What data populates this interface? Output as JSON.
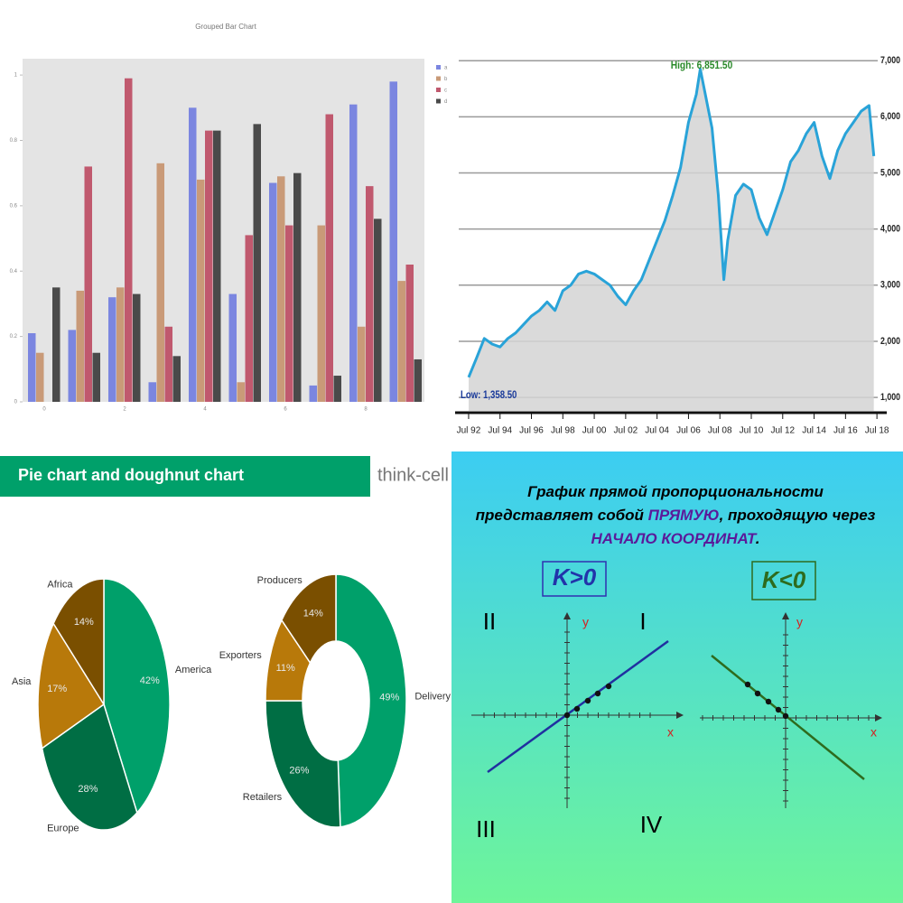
{
  "chart_data": [
    {
      "type": "bar",
      "title": "Grouped Bar Chart",
      "categories": [
        "0",
        null,
        "2",
        null,
        "4",
        null,
        "6",
        null,
        "8",
        null
      ],
      "series": [
        {
          "name": "a",
          "color": "#7b86e0",
          "values": [
            0.21,
            0.22,
            0.32,
            0.06,
            0.9,
            0.33,
            0.67,
            0.05,
            0.91,
            0.98
          ]
        },
        {
          "name": "b",
          "color": "#c99a78",
          "values": [
            0.15,
            0.34,
            0.35,
            0.73,
            0.68,
            0.06,
            0.69,
            0.54,
            0.23,
            0.37
          ]
        },
        {
          "name": "c",
          "color": "#c0596e",
          "values": [
            0,
            0.72,
            0.99,
            0.23,
            0.83,
            0.51,
            0.54,
            0.88,
            0.66,
            0.42
          ]
        },
        {
          "name": "d",
          "color": "#4a4a4a",
          "values": [
            0.35,
            0.15,
            0.33,
            0.14,
            0.83,
            0.85,
            0.7,
            0.08,
            0.56,
            0.13
          ]
        }
      ],
      "ylim": [
        0,
        1.05
      ],
      "yticks": [
        0,
        0.2,
        0.4,
        0.6,
        0.8,
        1
      ],
      "grid": false,
      "legend": "right"
    },
    {
      "type": "area",
      "color": "#29a3d8",
      "fill": "#d3d3d3",
      "x": [
        1992.5,
        1993,
        1993.5,
        1994,
        1994.5,
        1995,
        1995.5,
        1996,
        1996.5,
        1997,
        1997.5,
        1998,
        1998.5,
        1999,
        1999.5,
        2000,
        2000.5,
        2001,
        2001.5,
        2002,
        2002.5,
        2003,
        2003.5,
        2004,
        2004.5,
        2005,
        2005.5,
        2006,
        2006.5,
        2007,
        2007.25,
        2008,
        2008.4,
        2008.75,
        2009,
        2009.5,
        2010,
        2010.5,
        2011,
        2011.5,
        2012,
        2012.5,
        2013,
        2013.5,
        2014,
        2014.5,
        2015,
        2015.5,
        2016,
        2016.5,
        2017,
        2017.5,
        2018,
        2018.3
      ],
      "values": [
        1358.5,
        1700,
        2050,
        1950,
        1900,
        2050,
        2150,
        2300,
        2450,
        2550,
        2700,
        2550,
        2900,
        3000,
        3200,
        3250,
        3200,
        3100,
        3000,
        2800,
        2650,
        2900,
        3100,
        3450,
        3800,
        4150,
        4600,
        5100,
        5900,
        6400,
        6851.5,
        5800,
        4600,
        3100,
        3800,
        4600,
        4800,
        4700,
        4200,
        3900,
        4300,
        4700,
        5200,
        5400,
        5700,
        5900,
        5300,
        4900,
        5400,
        5700,
        5900,
        6100,
        6200,
        5300
      ],
      "xlim": [
        1991.87,
        2018.55
      ],
      "xticks": [
        {
          "value": 1992.5,
          "label": "Jul 92"
        },
        {
          "value": 1994.5,
          "label": "Jul 94"
        },
        {
          "value": 1996.5,
          "label": "Jul 96"
        },
        {
          "value": 1998.5,
          "label": "Jul 98"
        },
        {
          "value": 2000.5,
          "label": "Jul 00"
        },
        {
          "value": 2002.5,
          "label": "Jul 02"
        },
        {
          "value": 2004.5,
          "label": "Jul 04"
        },
        {
          "value": 2006.5,
          "label": "Jul 06"
        },
        {
          "value": 2008.5,
          "label": "Jul 08"
        },
        {
          "value": 2010.5,
          "label": "Jul 10"
        },
        {
          "value": 2012.5,
          "label": "Jul 12"
        },
        {
          "value": 2014.5,
          "label": "Jul 14"
        },
        {
          "value": 2016.5,
          "label": "Jul 16"
        },
        {
          "value": 2018.5,
          "label": "Jul 18"
        }
      ],
      "ylim": [
        760,
        7840
      ],
      "yticks": [
        {
          "value": 1000,
          "label": "1,000"
        },
        {
          "value": 2000,
          "label": "2,000"
        },
        {
          "value": 3000,
          "label": "3,000"
        },
        {
          "value": 4000,
          "label": "4,000"
        },
        {
          "value": 5000,
          "label": "5,000"
        },
        {
          "value": 6000,
          "label": "6,000"
        },
        {
          "value": 7000,
          "label": "7,000"
        }
      ],
      "grid": true,
      "annotations": [
        "High: 6,851.50",
        "Low: 1,358.50"
      ]
    },
    {
      "type": "pie",
      "title": "Pie chart and doughnut chart",
      "brand": "think-cell",
      "categories": [
        "America",
        "Europe",
        "Asia",
        "Africa"
      ],
      "values": [
        42,
        28,
        17,
        14
      ],
      "value_labels": [
        "42%",
        "28%",
        "17%",
        "14%"
      ],
      "colors": [
        "#00a06a",
        "#006e44",
        "#b8790a",
        "#7a4f00"
      ]
    },
    {
      "type": "doughnut",
      "categories": [
        "Delivery",
        "Retailers",
        "Exporters",
        "Producers"
      ],
      "values": [
        49,
        26,
        11,
        14
      ],
      "value_labels": [
        "49%",
        "26%",
        "11%",
        "14%"
      ],
      "colors": [
        "#00a06a",
        "#006e44",
        "#b8790a",
        "#7a4f00"
      ]
    }
  ],
  "diagram": {
    "heading": [
      "График прямой пропорциональности",
      "представляет собой ",
      "ПРЯМУЮ",
      ", проходящую через",
      "НАЧАЛО КООРДИНАТ",
      "."
    ],
    "graphs": [
      {
        "label": "K>0",
        "quadrants": [
          "II",
          "I",
          "III",
          "IV"
        ],
        "x_label": "x",
        "y_label": "y"
      },
      {
        "label": "K<0",
        "x_label": "x",
        "y_label": "y"
      }
    ]
  }
}
